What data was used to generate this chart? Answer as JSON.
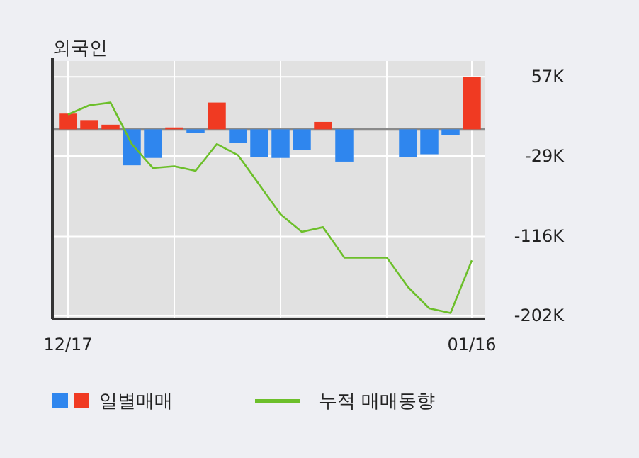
{
  "chart_data": {
    "type": "bar",
    "title": "외국인",
    "categories": [
      "12/17",
      null,
      null,
      null,
      null,
      null,
      null,
      null,
      null,
      null,
      null,
      null,
      null,
      null,
      null,
      null,
      null,
      null,
      null,
      "01/16"
    ],
    "series": [
      {
        "name": "일별매매",
        "colors": [
          "#f03a22",
          "#f03a22",
          "#f03a22",
          "#2f86ee",
          "#2f86ee",
          "#f03a22",
          "#2f86ee",
          "#f03a22",
          "#2f86ee",
          "#2f86ee",
          "#2f86ee",
          "#2f86ee",
          "#f03a22",
          "#2f86ee",
          "#2f86ee",
          "#2f86ee",
          "#2f86ee",
          "#2f86ee",
          "#2f86ee",
          "#f03a22"
        ],
        "values": [
          17,
          10,
          5,
          -39,
          -31,
          2,
          -4,
          29,
          -15,
          -30,
          -31,
          -22,
          8,
          -35,
          0,
          0,
          -30,
          -27,
          -6,
          57
        ]
      },
      {
        "name": "누적 매매동향",
        "type": "line",
        "color": "#6cbf2a",
        "values": [
          16,
          26,
          29,
          -16,
          -42,
          -40,
          -45,
          -16,
          -28,
          -60,
          -92,
          -111,
          -106,
          -139,
          -139,
          -139,
          -171,
          -194,
          -199,
          -142
        ]
      }
    ],
    "ylim": [
      -204,
      74
    ],
    "yticks": [
      {
        "value": -202,
        "label": "-202K"
      },
      {
        "value": -116,
        "label": "-116K"
      },
      {
        "value": -29,
        "label": "-29K"
      },
      {
        "value": 57,
        "label": "57K"
      }
    ],
    "ref_lines": [
      {
        "axis": "y",
        "value": 0,
        "color": "#8a8a8a"
      }
    ],
    "grid": true,
    "legend": "bottom"
  }
}
